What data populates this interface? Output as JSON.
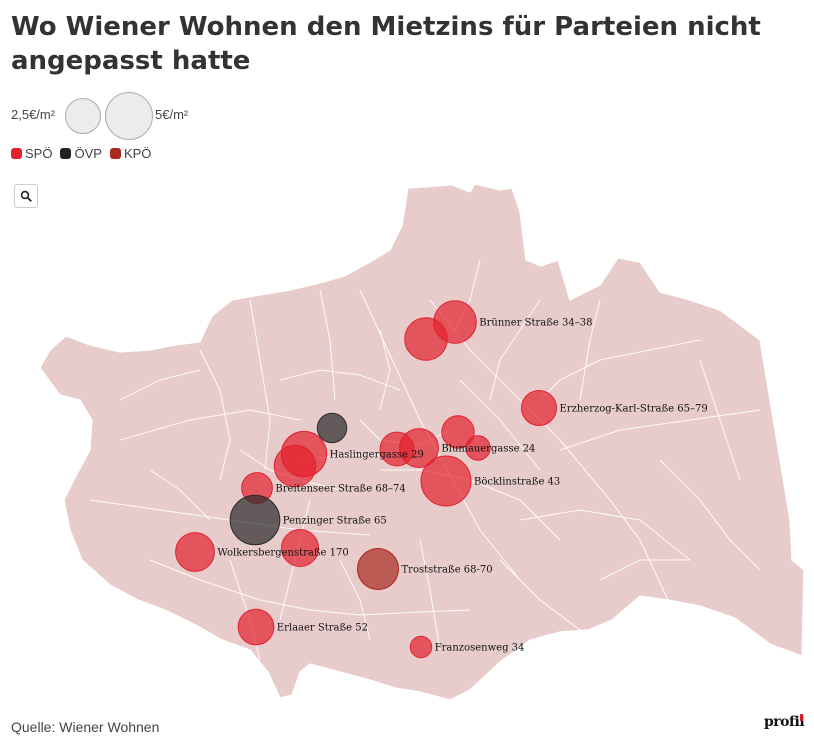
{
  "title": "Wo Wiener Wohnen den Mietzins für Parteien nicht angepasst hatte",
  "size_legend": {
    "small_label": "2,5€/m²",
    "large_label": "5€/m²"
  },
  "color_legend": [
    {
      "label": "SPÖ",
      "color": "#e3212d"
    },
    {
      "label": "ÖVP",
      "color": "#222222"
    },
    {
      "label": "KPÖ",
      "color": "#a8291f"
    }
  ],
  "search": {
    "icon": "search-icon"
  },
  "map": {
    "fill": "#e8cccc",
    "border_color": "#ffffff",
    "circle_colors": {
      "SPÖ": "#e3212d",
      "ÖVP": "#2b2b2b",
      "KPÖ": "#a8291f"
    }
  },
  "locations": [
    {
      "label": "Brünner Straße 34–38",
      "party": "SPÖ",
      "value": 4.0
    },
    {
      "label": "",
      "party": "SPÖ",
      "value": 4.0
    },
    {
      "label": "Erzherzog-Karl-Straße 65–79",
      "party": "SPÖ",
      "value": 2.7
    },
    {
      "label": "",
      "party": "ÖVP",
      "value": 1.9
    },
    {
      "label": "Haslingergasse 29",
      "party": "SPÖ",
      "value": 4.5
    },
    {
      "label": "",
      "party": "SPÖ",
      "value": 3.8
    },
    {
      "label": "",
      "party": "SPÖ",
      "value": 2.5
    },
    {
      "label": "Blumauergasse 24",
      "party": "SPÖ",
      "value": 3.3
    },
    {
      "label": "",
      "party": "SPÖ",
      "value": 2.3
    },
    {
      "label": "",
      "party": "SPÖ",
      "value": 1.3
    },
    {
      "label": "Böcklinstraße 43",
      "party": "SPÖ",
      "value": 5.5
    },
    {
      "label": "Breitenseer Straße 68–74",
      "party": "SPÖ",
      "value": 2.1
    },
    {
      "label": "Penzinger Straße 65",
      "party": "ÖVP",
      "value": 5.4
    },
    {
      "label": "Wolkersbergenstraße 170",
      "party": "SPÖ",
      "value": 3.3
    },
    {
      "label": "",
      "party": "SPÖ",
      "value": 3.0
    },
    {
      "label": "Troststraße 68-70",
      "party": "KPÖ",
      "value": 3.7
    },
    {
      "label": "Erlaaer Straße 52",
      "party": "SPÖ",
      "value": 2.8
    },
    {
      "label": "Franzosenweg 34",
      "party": "SPÖ",
      "value": 1.0
    }
  ],
  "source": "Quelle: Wiener Wohnen",
  "brand": "profil"
}
